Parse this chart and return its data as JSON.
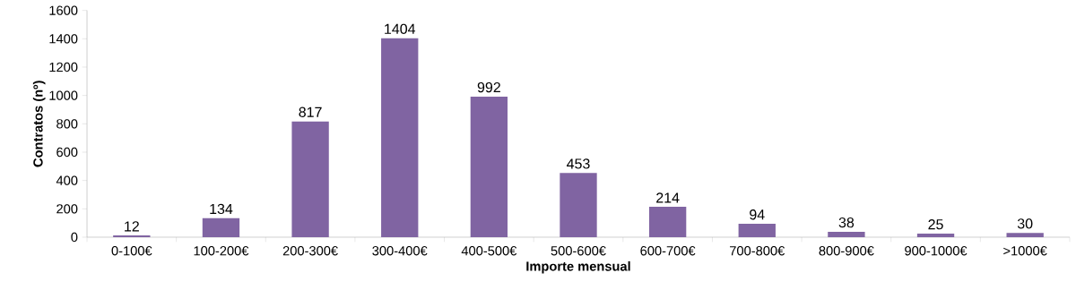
{
  "chart_data": {
    "type": "bar",
    "xlabel": "Importe mensual",
    "ylabel": "Contratos (nº)",
    "categories": [
      "0-100€",
      "100-200€",
      "200-300€",
      "300-400€",
      "400-500€",
      "500-600€",
      "600-700€",
      "700-800€",
      "800-900€",
      "900-1000€",
      ">1000€"
    ],
    "values": [
      12,
      134,
      817,
      1404,
      992,
      453,
      214,
      94,
      38,
      25,
      30
    ],
    "color": "#8064a2",
    "ylim": [
      0,
      1600
    ],
    "yticks": [
      0,
      200,
      400,
      600,
      800,
      1000,
      1200,
      1400,
      1600
    ],
    "data_labels": true,
    "grid": false
  }
}
